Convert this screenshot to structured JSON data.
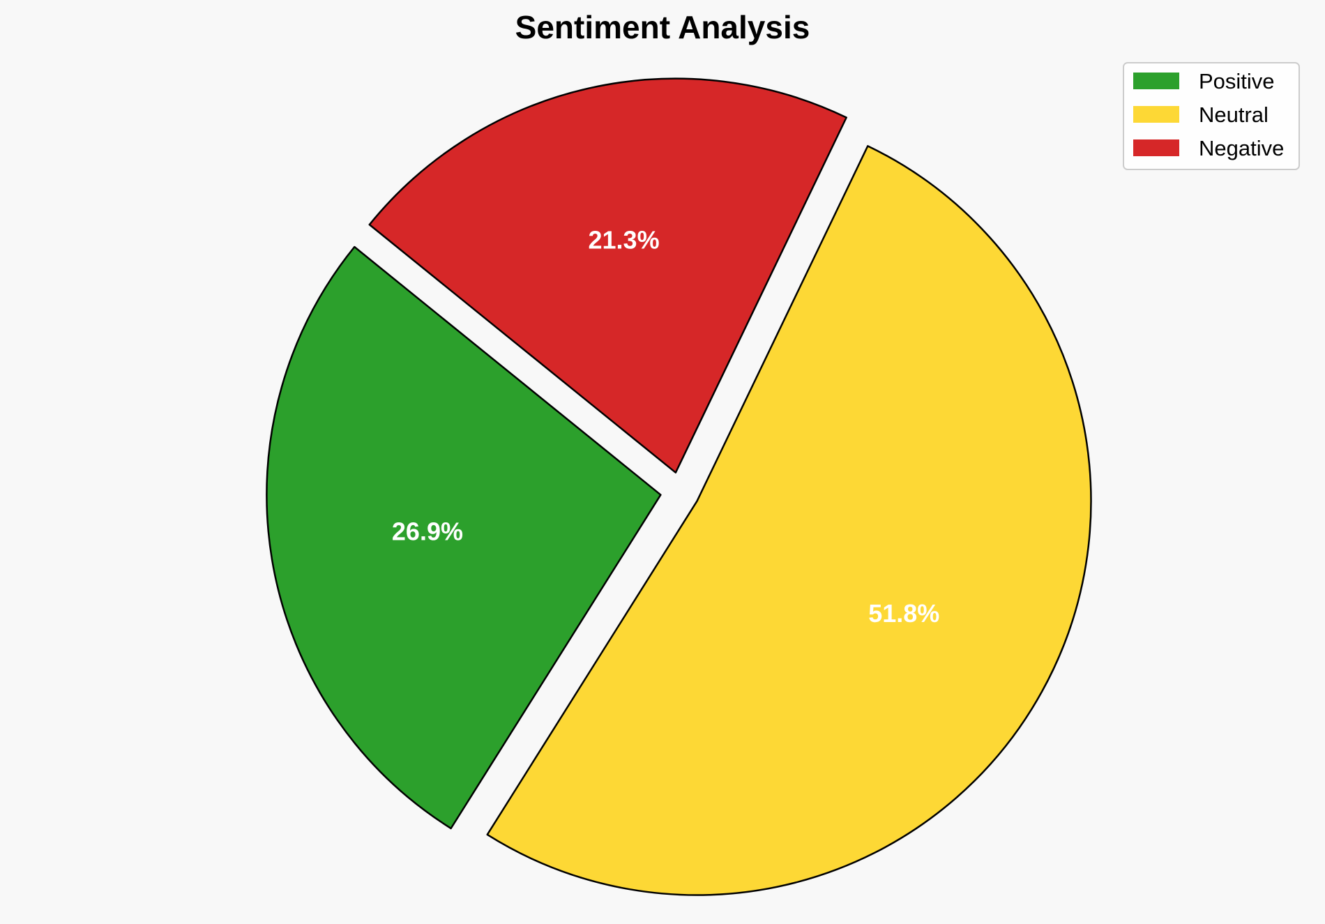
{
  "chart_data": {
    "type": "pie",
    "title": "Sentiment Analysis",
    "categories": [
      "Positive",
      "Neutral",
      "Negative"
    ],
    "values": [
      26.9,
      51.8,
      21.3
    ],
    "labels": [
      "26.9%",
      "51.8%",
      "21.3%"
    ],
    "colors": [
      "#2ca02c",
      "#fdd835",
      "#d62728"
    ],
    "edge_color": "#000000",
    "background": "#f8f8f8",
    "legend_position": "top-right",
    "slices_exploded": true
  }
}
